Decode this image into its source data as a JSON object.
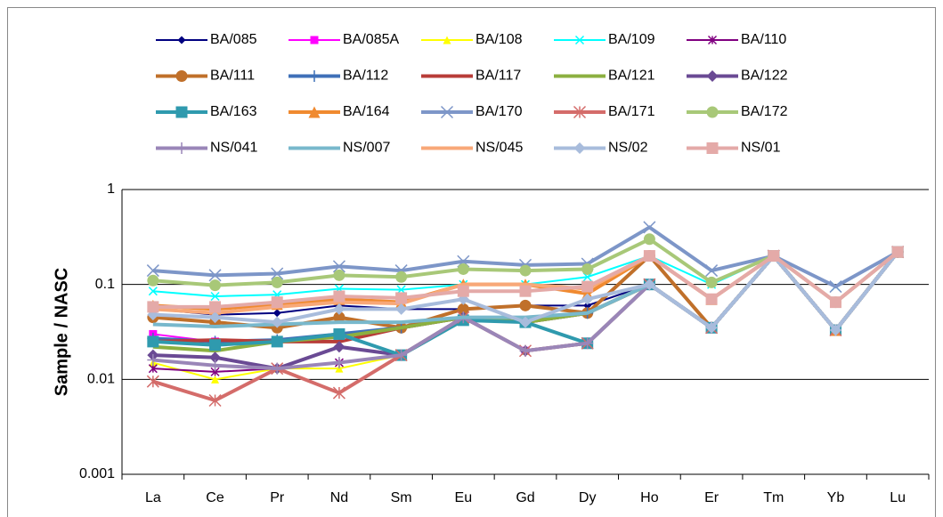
{
  "chart_data": {
    "type": "line",
    "y_label": "Sample / NASC",
    "log_scale": true,
    "grid": true,
    "categories": [
      "La",
      "Ce",
      "Pr",
      "Nd",
      "Sm",
      "Eu",
      "Gd",
      "Dy",
      "Ho",
      "Er",
      "Tm",
      "Yb",
      "Lu"
    ],
    "ylim": [
      0.001,
      1
    ],
    "yticks": [
      1,
      0.1,
      0.01,
      0.001
    ],
    "series": [
      {
        "name": "BA/085",
        "color": "#000080",
        "marker": "diamond",
        "values": [
          0.055,
          0.048,
          0.05,
          0.06,
          0.055,
          0.055,
          0.06,
          0.06,
          0.1,
          0.035,
          0.2,
          0.033,
          0.22
        ]
      },
      {
        "name": "BA/085A",
        "color": "#ff00ff",
        "marker": "square",
        "values": [
          0.03,
          0.025,
          0.026,
          0.03,
          0.018,
          0.045,
          0.02,
          0.024,
          0.1,
          0.035,
          0.2,
          0.033,
          0.22
        ]
      },
      {
        "name": "BA/108",
        "color": "#ffff00",
        "marker": "triangle",
        "values": [
          0.015,
          0.01,
          0.013,
          0.013,
          0.018,
          0.045,
          0.02,
          0.024,
          0.1,
          0.035,
          0.2,
          0.033,
          0.22
        ]
      },
      {
        "name": "BA/109",
        "color": "#00ffff",
        "marker": "x",
        "values": [
          0.085,
          0.075,
          0.078,
          0.09,
          0.088,
          0.1,
          0.1,
          0.12,
          0.2,
          0.1,
          0.2,
          0.095,
          0.22
        ]
      },
      {
        "name": "BA/110",
        "color": "#800080",
        "marker": "star",
        "values": [
          0.013,
          0.012,
          0.013,
          0.015,
          0.018,
          0.045,
          0.02,
          0.024,
          0.1,
          0.035,
          0.2,
          0.033,
          0.22
        ]
      },
      {
        "name": "BA/111",
        "color": "#c0702a",
        "marker": "circle",
        "values": [
          0.045,
          0.04,
          0.035,
          0.045,
          0.035,
          0.055,
          0.06,
          0.05,
          0.2,
          0.035,
          0.2,
          0.033,
          0.22
        ]
      },
      {
        "name": "BA/112",
        "color": "#3f70b8",
        "marker": "plus",
        "values": [
          0.027,
          0.025,
          0.026,
          0.03,
          0.035,
          0.045,
          0.04,
          0.05,
          0.1,
          0.035,
          0.2,
          0.033,
          0.22
        ]
      },
      {
        "name": "BA/117",
        "color": "#b83c38",
        "marker": "none",
        "values": [
          0.025,
          0.026,
          0.025,
          0.025,
          0.035,
          0.045,
          0.04,
          0.05,
          0.1,
          0.035,
          0.2,
          0.033,
          0.22
        ]
      },
      {
        "name": "BA/121",
        "color": "#8cb040",
        "marker": "none",
        "values": [
          0.022,
          0.02,
          0.025,
          0.028,
          0.035,
          0.045,
          0.04,
          0.05,
          0.1,
          0.035,
          0.2,
          0.033,
          0.22
        ]
      },
      {
        "name": "BA/122",
        "color": "#6a4a94",
        "marker": "diamond",
        "values": [
          0.018,
          0.017,
          0.013,
          0.022,
          0.018,
          0.045,
          0.02,
          0.024,
          0.1,
          0.035,
          0.2,
          0.033,
          0.22
        ]
      },
      {
        "name": "BA/163",
        "color": "#2f9aae",
        "marker": "square",
        "values": [
          0.025,
          0.023,
          0.025,
          0.03,
          0.018,
          0.042,
          0.04,
          0.024,
          0.1,
          0.035,
          0.2,
          0.033,
          0.22
        ]
      },
      {
        "name": "BA/164",
        "color": "#f08a30",
        "marker": "triangle",
        "values": [
          0.06,
          0.055,
          0.062,
          0.07,
          0.065,
          0.1,
          0.1,
          0.08,
          0.2,
          0.07,
          0.2,
          0.033,
          0.22
        ]
      },
      {
        "name": "BA/170",
        "color": "#7d96c8",
        "marker": "x",
        "values": [
          0.14,
          0.125,
          0.13,
          0.155,
          0.14,
          0.175,
          0.16,
          0.165,
          0.4,
          0.14,
          0.2,
          0.095,
          0.22
        ]
      },
      {
        "name": "BA/171",
        "color": "#d46c6a",
        "marker": "star",
        "values": [
          0.0095,
          0.006,
          0.013,
          0.0072,
          0.018,
          0.045,
          0.02,
          0.024,
          0.1,
          0.035,
          0.2,
          0.033,
          0.22
        ]
      },
      {
        "name": "BA/172",
        "color": "#a8c878",
        "marker": "circle",
        "values": [
          0.11,
          0.098,
          0.105,
          0.125,
          0.12,
          0.145,
          0.14,
          0.145,
          0.3,
          0.105,
          0.2,
          0.065,
          0.22
        ]
      },
      {
        "name": "NS/041",
        "color": "#9a86b8",
        "marker": "plus",
        "values": [
          0.016,
          0.014,
          0.013,
          0.015,
          0.018,
          0.045,
          0.02,
          0.024,
          0.1,
          0.035,
          0.2,
          0.033,
          0.22
        ]
      },
      {
        "name": "NS/007",
        "color": "#78b8cc",
        "marker": "none",
        "values": [
          0.038,
          0.036,
          0.038,
          0.04,
          0.04,
          0.045,
          0.045,
          0.05,
          0.1,
          0.035,
          0.2,
          0.033,
          0.22
        ]
      },
      {
        "name": "NS/045",
        "color": "#f8a878",
        "marker": "none",
        "values": [
          0.055,
          0.05,
          0.058,
          0.065,
          0.063,
          0.1,
          0.1,
          0.09,
          0.2,
          0.07,
          0.2,
          0.065,
          0.22
        ]
      },
      {
        "name": "NS/02",
        "color": "#a8bcdc",
        "marker": "diamond",
        "values": [
          0.048,
          0.045,
          0.04,
          0.055,
          0.055,
          0.07,
          0.04,
          0.07,
          0.1,
          0.035,
          0.2,
          0.033,
          0.22
        ]
      },
      {
        "name": "NS/01",
        "color": "#e4aaa8",
        "marker": "square",
        "values": [
          0.058,
          0.058,
          0.065,
          0.075,
          0.072,
          0.085,
          0.085,
          0.095,
          0.2,
          0.07,
          0.2,
          0.065,
          0.22
        ]
      }
    ]
  }
}
